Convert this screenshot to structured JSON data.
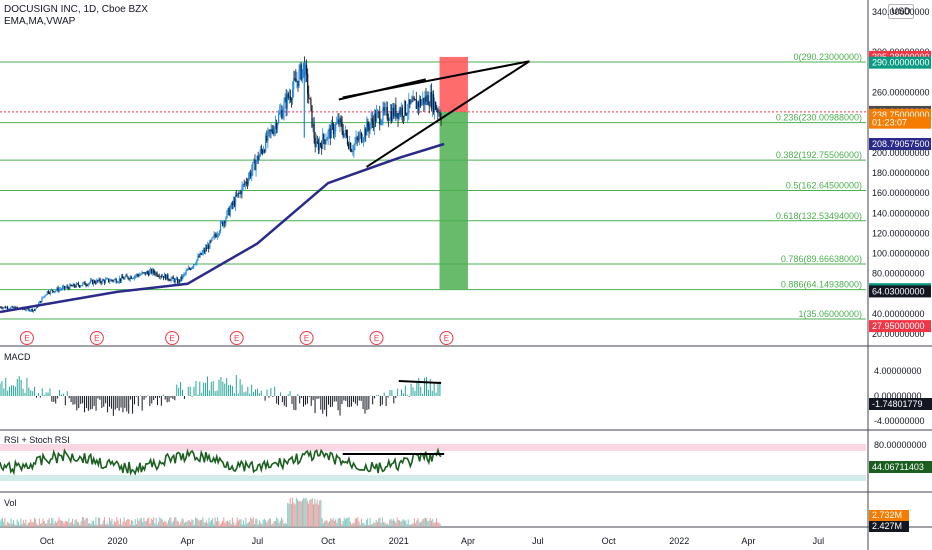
{
  "header": {
    "symbol": "DOCUSIGN INC, 1D, Cboe BZX",
    "indicators": "EMA,MA,VWAP",
    "currency": "USD"
  },
  "price_axis": {
    "ticks": [
      "340.00000000",
      "300.00000000",
      "260.00000000",
      "200.00000000",
      "180.00000000",
      "160.00000000",
      "140.00000000",
      "120.00000000",
      "100.00000000",
      "80.00000000",
      "40.00000000",
      "20.00000000"
    ],
    "badges": [
      {
        "text": "295.28000000",
        "color": "#f23645",
        "value": 295.28
      },
      {
        "text": "290.00000000",
        "color": "#089981",
        "value": 289.6
      },
      {
        "text": "240.64000000",
        "color": "#4a4a4a",
        "value": 240.64
      },
      {
        "text": "238.75000000",
        "color": "#f57c00",
        "value": 237.8
      },
      {
        "text": "01:23:07",
        "color": "#f57c00",
        "value": 230
      },
      {
        "text": "208.79057500",
        "color": "#2a2a8a",
        "value": 208.79
      },
      {
        "text": "64.59000000",
        "color": "#089981",
        "value": 64.59
      },
      {
        "text": "64.03000000",
        "color": "#131722",
        "value": 62.4
      },
      {
        "text": "27.95000000",
        "color": "#f23645",
        "value": 27.95
      }
    ]
  },
  "time_axis": {
    "labels": [
      "Oct",
      "2020",
      "Apr",
      "Jul",
      "Oct",
      "2021",
      "Apr",
      "Jul",
      "Oct",
      "2022",
      "Apr",
      "Jul"
    ]
  },
  "fib_levels": [
    {
      "label": "0(290.23000000)",
      "value": 290.23
    },
    {
      "label": "0.236(230.00988000)",
      "value": 230.01
    },
    {
      "label": "0.382(192.75506000)",
      "value": 192.76
    },
    {
      "label": "0.5(162.64500000)",
      "value": 162.65
    },
    {
      "label": "0.618(132.53494000)",
      "value": 132.53
    },
    {
      "label": "0.786(89.66638000)",
      "value": 89.67
    },
    {
      "label": "0.886(64.14938000)",
      "value": 64.15
    },
    {
      "label": "1(35.06000000)",
      "value": 35.06
    }
  ],
  "earnings_marker": "E",
  "panes": {
    "macd": {
      "title": "MACD",
      "ticks": [
        "4.00000000",
        "0.00000000",
        "-4.00000000"
      ],
      "badge": "-1.74801779"
    },
    "rsi": {
      "title": "RSI + Stoch RSI",
      "ticks": [
        "80.00000000"
      ],
      "badge": "44.06711403"
    },
    "vol": {
      "title": "Vol",
      "badges": [
        "2.732M",
        "2.427M"
      ]
    }
  },
  "chart_data": {
    "type": "candlestick",
    "symbol": "DOCUSIGN INC",
    "interval": "1D",
    "x_range": [
      "2019-08",
      "2022-09"
    ],
    "y_range": [
      10,
      350
    ],
    "approx_close": [
      {
        "date": "2019-08-01",
        "close": 47
      },
      {
        "date": "2019-09-15",
        "close": 44
      },
      {
        "date": "2019-10-01",
        "close": 62
      },
      {
        "date": "2019-12-01",
        "close": 72
      },
      {
        "date": "2020-01-01",
        "close": 74
      },
      {
        "date": "2020-02-15",
        "close": 82
      },
      {
        "date": "2020-03-20",
        "close": 72
      },
      {
        "date": "2020-05-01",
        "close": 110
      },
      {
        "date": "2020-06-15",
        "close": 170
      },
      {
        "date": "2020-07-15",
        "close": 215
      },
      {
        "date": "2020-08-31",
        "close": 287
      },
      {
        "date": "2020-09-15",
        "close": 205
      },
      {
        "date": "2020-10-15",
        "close": 230
      },
      {
        "date": "2020-11-01",
        "close": 205
      },
      {
        "date": "2020-12-01",
        "close": 235
      },
      {
        "date": "2021-01-15",
        "close": 245
      },
      {
        "date": "2021-02-10",
        "close": 255
      },
      {
        "date": "2021-02-25",
        "close": 238.75
      }
    ],
    "moving_average": [
      {
        "date": "2019-08-01",
        "value": 42
      },
      {
        "date": "2020-01-01",
        "value": 62
      },
      {
        "date": "2020-04-01",
        "value": 70
      },
      {
        "date": "2020-07-01",
        "value": 110
      },
      {
        "date": "2020-10-01",
        "value": 170
      },
      {
        "date": "2021-01-01",
        "value": 195
      },
      {
        "date": "2021-03-01",
        "value": 208.79
      }
    ],
    "annotations": {
      "rising_wedge_upper": [
        [
          "2020-10-20",
          255
        ],
        [
          "2021-06-20",
          291
        ]
      ],
      "rising_wedge_lower": [
        [
          "2020-11-20",
          186
        ],
        [
          "2021-06-20",
          291
        ]
      ],
      "short_stop_zone": [
        295.28,
        240.64
      ],
      "short_target_zone": [
        240.64,
        64.59
      ]
    }
  }
}
